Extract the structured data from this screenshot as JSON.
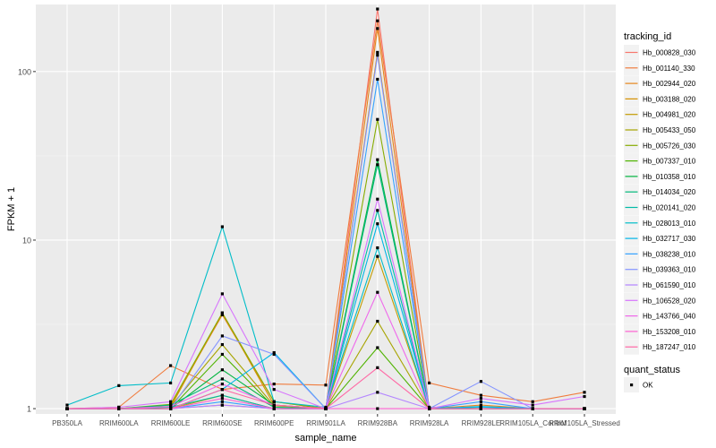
{
  "chart_data": {
    "type": "line",
    "title": "",
    "xlabel": "sample_name",
    "ylabel": "FPKM + 1",
    "yscale": "log10",
    "ylim": [
      0.93,
      250
    ],
    "y_ticks": [
      1,
      10,
      100
    ],
    "y_tick_labels": [
      "1",
      "10",
      "100"
    ],
    "grid": true,
    "legend_position": "right",
    "categories": [
      "PB350LA",
      "RRIM600LA",
      "RRIM600LE",
      "RRIM600SE",
      "RRIM600PE",
      "RRIM901LA",
      "RRIM928BA",
      "RRIM928LA",
      "RRIM928LE",
      "RRIM105LA_Control",
      "RRIM105LA_Stressed"
    ],
    "legend_title": "tracking_id",
    "shape_legend_title": "quant_status",
    "shape_legend_items": [
      "OK"
    ],
    "series": [
      {
        "name": "Hb_000828_030",
        "color": "#F8766D",
        "values": [
          1.0,
          1.0,
          1.0,
          1.05,
          1.0,
          1.0,
          235,
          1.0,
          1.0,
          1.0,
          1.0
        ]
      },
      {
        "name": "Hb_001140_330",
        "color": "#F07C3E",
        "values": [
          1.0,
          1.02,
          1.8,
          1.3,
          1.4,
          1.38,
          200,
          1.42,
          1.2,
          1.1,
          1.25
        ]
      },
      {
        "name": "Hb_002944_020",
        "color": "#E5861C",
        "values": [
          1.0,
          1.0,
          1.05,
          3.6,
          1.1,
          1.0,
          180,
          1.0,
          1.05,
          1.0,
          1.0
        ]
      },
      {
        "name": "Hb_003188_020",
        "color": "#D69100",
        "values": [
          1.0,
          1.0,
          1.02,
          3.7,
          1.05,
          1.0,
          130,
          1.0,
          1.0,
          1.0,
          1.0
        ]
      },
      {
        "name": "Hb_004981_020",
        "color": "#C39B00",
        "values": [
          1.0,
          1.0,
          1.0,
          1.2,
          1.0,
          1.0,
          8,
          1.0,
          1.0,
          1.0,
          1.0
        ]
      },
      {
        "name": "Hb_005433_050",
        "color": "#A7A400",
        "values": [
          1.0,
          1.0,
          1.03,
          2.4,
          1.04,
          1.0,
          3.3,
          1.0,
          1.0,
          1.0,
          1.0
        ]
      },
      {
        "name": "Hb_005726_030",
        "color": "#86AC00",
        "values": [
          1.0,
          1.0,
          1.06,
          3.7,
          1.1,
          1.0,
          52,
          1.02,
          1.0,
          1.0,
          1.0
        ]
      },
      {
        "name": "Hb_007337_010",
        "color": "#4FB300",
        "values": [
          1.0,
          1.0,
          1.0,
          2.1,
          1.02,
          1.0,
          2.3,
          1.0,
          1.0,
          1.0,
          1.0
        ]
      },
      {
        "name": "Hb_010358_010",
        "color": "#00B43F",
        "values": [
          1.0,
          1.0,
          1.0,
          1.7,
          1.05,
          1.0,
          30,
          1.0,
          1.0,
          1.0,
          1.0
        ]
      },
      {
        "name": "Hb_014034_020",
        "color": "#00B87A",
        "values": [
          1.0,
          1.0,
          1.05,
          1.5,
          1.02,
          1.0,
          28,
          1.0,
          1.0,
          1.0,
          1.0
        ]
      },
      {
        "name": "Hb_020141_020",
        "color": "#00BBA7",
        "values": [
          1.0,
          1.0,
          1.02,
          1.2,
          1.0,
          1.0,
          15,
          1.0,
          1.0,
          1.0,
          1.0
        ]
      },
      {
        "name": "Hb_028013_010",
        "color": "#00BDC8",
        "values": [
          1.05,
          1.37,
          1.42,
          12,
          1.1,
          1.02,
          9,
          1.0,
          1.02,
          1.0,
          1.0
        ]
      },
      {
        "name": "Hb_032717_030",
        "color": "#00B5E8",
        "values": [
          1.0,
          1.0,
          1.0,
          1.3,
          2.15,
          1.0,
          12.5,
          1.0,
          1.03,
          1.0,
          1.0
        ]
      },
      {
        "name": "Hb_038238_010",
        "color": "#35A2FF",
        "values": [
          1.0,
          1.0,
          1.0,
          1.1,
          1.0,
          1.0,
          90,
          1.0,
          1.1,
          1.0,
          1.0
        ]
      },
      {
        "name": "Hb_039363_010",
        "color": "#8494FF",
        "values": [
          1.0,
          1.0,
          1.0,
          2.7,
          2.1,
          1.0,
          125,
          1.0,
          1.45,
          1.0,
          1.0
        ]
      },
      {
        "name": "Hb_061590_010",
        "color": "#B385FF",
        "values": [
          1.0,
          1.0,
          1.0,
          1.05,
          1.0,
          1.0,
          1.25,
          1.0,
          1.0,
          1.0,
          1.0
        ]
      },
      {
        "name": "Hb_106528_020",
        "color": "#D774FD",
        "values": [
          1.0,
          1.02,
          1.1,
          4.8,
          1.3,
          1.0,
          17.5,
          1.0,
          1.15,
          1.05,
          1.18
        ]
      },
      {
        "name": "Hb_143766_040",
        "color": "#EF67EB",
        "values": [
          1.0,
          1.0,
          1.03,
          1.4,
          1.05,
          1.0,
          4.9,
          1.0,
          1.0,
          1.0,
          1.0
        ]
      },
      {
        "name": "Hb_153208_010",
        "color": "#FD61D1",
        "values": [
          1.0,
          1.0,
          1.0,
          1.15,
          1.0,
          1.0,
          1.0,
          1.0,
          1.0,
          1.0,
          1.0
        ]
      },
      {
        "name": "Hb_187247_010",
        "color": "#FF67A4",
        "values": [
          1.0,
          1.0,
          1.0,
          1.3,
          1.05,
          1.0,
          1.75,
          1.0,
          1.0,
          1.0,
          1.0
        ]
      }
    ]
  }
}
